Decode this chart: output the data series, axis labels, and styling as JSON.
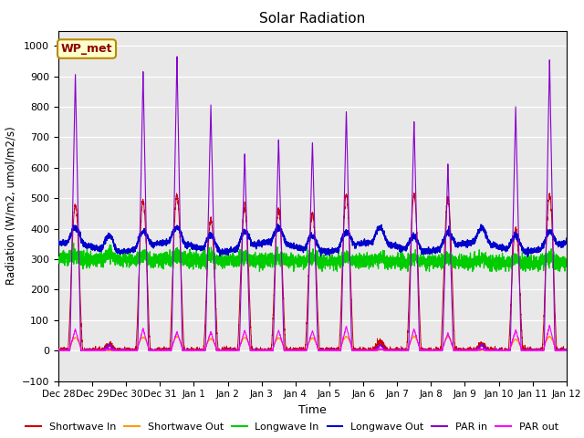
{
  "title": "Solar Radiation",
  "xlabel": "Time",
  "ylabel": "Radiation (W/m2, umol/m2/s)",
  "ylim": [
    -100,
    1050
  ],
  "annotation": "WP_met",
  "plot_bg_color": "#e8e8e8",
  "fig_bg_color": "#ffffff",
  "grid_color": "#ffffff",
  "legend": [
    {
      "label": "Shortwave In",
      "color": "#cc0000"
    },
    {
      "label": "Shortwave Out",
      "color": "#ff9900"
    },
    {
      "label": "Longwave In",
      "color": "#00cc00"
    },
    {
      "label": "Longwave Out",
      "color": "#0000cc"
    },
    {
      "label": "PAR in",
      "color": "#8800cc"
    },
    {
      "label": "PAR out",
      "color": "#ff00ff"
    }
  ],
  "xtick_labels": [
    "Dec 28",
    "Dec 29",
    "Dec 30",
    "Dec 31",
    "Jan 1",
    "Jan 2",
    "Jan 3",
    "Jan 4",
    "Jan 5",
    "Jan 6",
    "Jan 7",
    "Jan 8",
    "Jan 9",
    "Jan 10",
    "Jan 11",
    "Jan 12"
  ],
  "n_days": 15,
  "pts_per_day": 288,
  "figsize": [
    6.4,
    4.8
  ],
  "dpi": 100
}
